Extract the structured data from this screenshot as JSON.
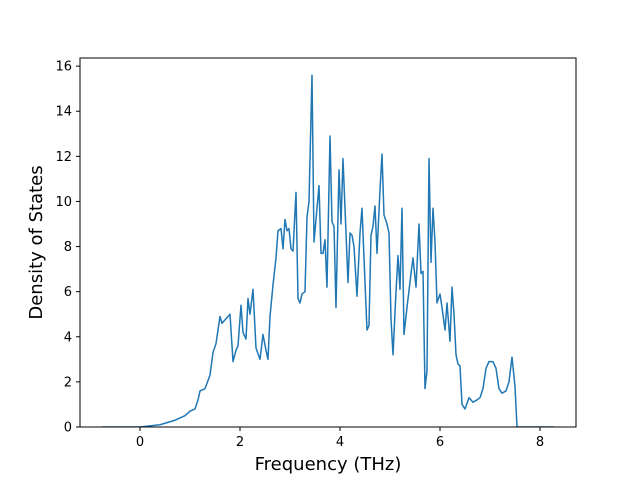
{
  "chart_data": {
    "type": "line",
    "xlabel": "Frequency (THz)",
    "ylabel": "Density of States",
    "color": "#1f77b4",
    "xlim": [
      -1.2,
      8.72
    ],
    "ylim": [
      0,
      16.36
    ],
    "xticks": [
      0,
      2,
      4,
      6,
      8
    ],
    "yticks": [
      0,
      2,
      4,
      6,
      8,
      10,
      12,
      14,
      16
    ],
    "grid": false,
    "x": [
      -0.76,
      0,
      0.4,
      0.7,
      0.9,
      1.0,
      1.1,
      1.16,
      1.2,
      1.3,
      1.4,
      1.46,
      1.52,
      1.6,
      1.64,
      1.72,
      1.8,
      1.86,
      1.92,
      1.96,
      2.02,
      2.06,
      2.12,
      2.16,
      2.2,
      2.26,
      2.32,
      2.4,
      2.46,
      2.52,
      2.56,
      2.6,
      2.66,
      2.72,
      2.76,
      2.82,
      2.86,
      2.9,
      2.94,
      2.98,
      3.02,
      3.06,
      3.12,
      3.16,
      3.2,
      3.24,
      3.3,
      3.34,
      3.38,
      3.44,
      3.48,
      3.52,
      3.58,
      3.62,
      3.66,
      3.7,
      3.74,
      3.8,
      3.84,
      3.88,
      3.92,
      3.98,
      4.02,
      4.06,
      4.1,
      4.16,
      4.2,
      4.24,
      4.28,
      4.34,
      4.4,
      4.44,
      4.5,
      4.54,
      4.58,
      4.62,
      4.66,
      4.7,
      4.74,
      4.8,
      4.84,
      4.88,
      4.94,
      4.98,
      5.02,
      5.06,
      5.12,
      5.16,
      5.2,
      5.24,
      5.28,
      5.34,
      5.42,
      5.46,
      5.52,
      5.58,
      5.62,
      5.66,
      5.7,
      5.74,
      5.78,
      5.82,
      5.86,
      5.9,
      5.94,
      6.0,
      6.04,
      6.1,
      6.14,
      6.2,
      6.24,
      6.28,
      6.32,
      6.36,
      6.4,
      6.44,
      6.5,
      6.58,
      6.66,
      6.74,
      6.8,
      6.86,
      6.92,
      6.98,
      7.06,
      7.12,
      7.18,
      7.24,
      7.32,
      7.38,
      7.44,
      7.5,
      7.54,
      7.6,
      8.28
    ],
    "values": [
      0,
      0,
      0.1,
      0.3,
      0.5,
      0.7,
      0.8,
      1.2,
      1.6,
      1.7,
      2.3,
      3.3,
      3.7,
      4.9,
      4.6,
      4.8,
      5.0,
      2.9,
      3.4,
      3.6,
      5.4,
      4.2,
      3.9,
      5.7,
      5.0,
      6.1,
      3.5,
      3.0,
      4.1,
      3.4,
      3.0,
      4.9,
      6.3,
      7.5,
      8.7,
      8.8,
      7.9,
      9.2,
      8.7,
      8.8,
      7.9,
      7.8,
      10.4,
      5.7,
      5.5,
      5.9,
      6.0,
      9.3,
      10.0,
      15.6,
      8.2,
      9.2,
      10.7,
      7.7,
      7.7,
      8.3,
      6.2,
      12.9,
      9.1,
      8.9,
      5.3,
      11.4,
      9.0,
      11.9,
      9.7,
      6.4,
      8.6,
      8.5,
      8.0,
      5.8,
      8.6,
      9.7,
      6.4,
      4.3,
      4.5,
      8.5,
      8.9,
      9.8,
      7.7,
      10.5,
      12.1,
      9.4,
      9.0,
      8.6,
      4.8,
      3.2,
      6.0,
      7.6,
      6.1,
      9.7,
      4.1,
      5.3,
      6.8,
      7.5,
      6.2,
      9.0,
      6.8,
      6.9,
      1.7,
      2.5,
      11.9,
      7.3,
      9.7,
      8.2,
      5.5,
      5.9,
      5.3,
      4.3,
      5.5,
      3.8,
      6.2,
      5.0,
      3.2,
      2.8,
      2.7,
      1.0,
      0.8,
      1.3,
      1.1,
      1.2,
      1.3,
      1.7,
      2.6,
      2.9,
      2.9,
      2.6,
      1.7,
      1.5,
      1.6,
      2.0,
      3.1,
      1.8,
      0,
      0,
      0
    ]
  }
}
